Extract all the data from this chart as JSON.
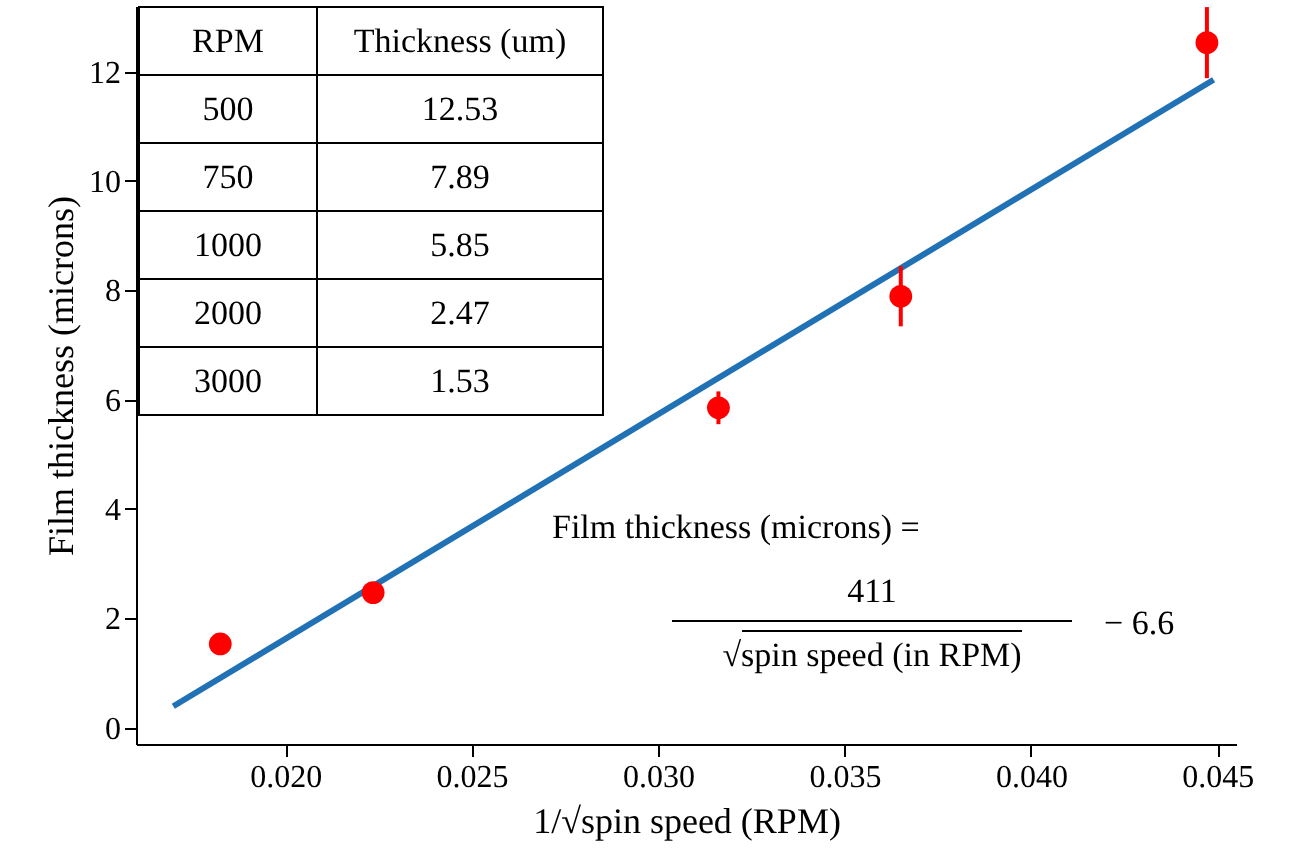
{
  "chart_data": {
    "type": "scatter",
    "xlabel": "1/√spin speed  (RPM)",
    "ylabel": "Film thickness (microns)",
    "xlim": [
      0.016,
      0.0455
    ],
    "ylim": [
      -0.3,
      13.2
    ],
    "xticks": [
      {
        "value": 0.02,
        "label": "0.020"
      },
      {
        "value": 0.025,
        "label": "0.025"
      },
      {
        "value": 0.03,
        "label": "0.030"
      },
      {
        "value": 0.035,
        "label": "0.035"
      },
      {
        "value": 0.04,
        "label": "0.040"
      },
      {
        "value": 0.045,
        "label": "0.045"
      }
    ],
    "yticks": [
      0,
      2,
      4,
      6,
      8,
      10,
      12
    ],
    "marker": "circle",
    "series": [
      {
        "type": "line",
        "marker": "none",
        "color": "#2171b5",
        "x": [
          0.017,
          0.0449
        ],
        "values": [
          0.39,
          11.85
        ]
      },
      {
        "color": "#ff0000",
        "x": [
          0.01826,
          0.02236,
          0.03162,
          0.03651,
          0.04472
        ],
        "values": [
          1.53,
          2.47,
          5.85,
          7.89,
          12.53
        ],
        "errors": [
          null,
          null,
          0.3,
          0.55,
          0.65
        ]
      }
    ],
    "annotations": [
      "RPM",
      "Thickness (um)",
      "500",
      "12.53",
      "750",
      "7.89",
      "1000",
      "5.85",
      "2000",
      "2.47",
      "3000",
      "1.53",
      "Film thickness (microns) =",
      "411",
      "√spin speed  (in RPM)",
      "− 6.6"
    ]
  }
}
